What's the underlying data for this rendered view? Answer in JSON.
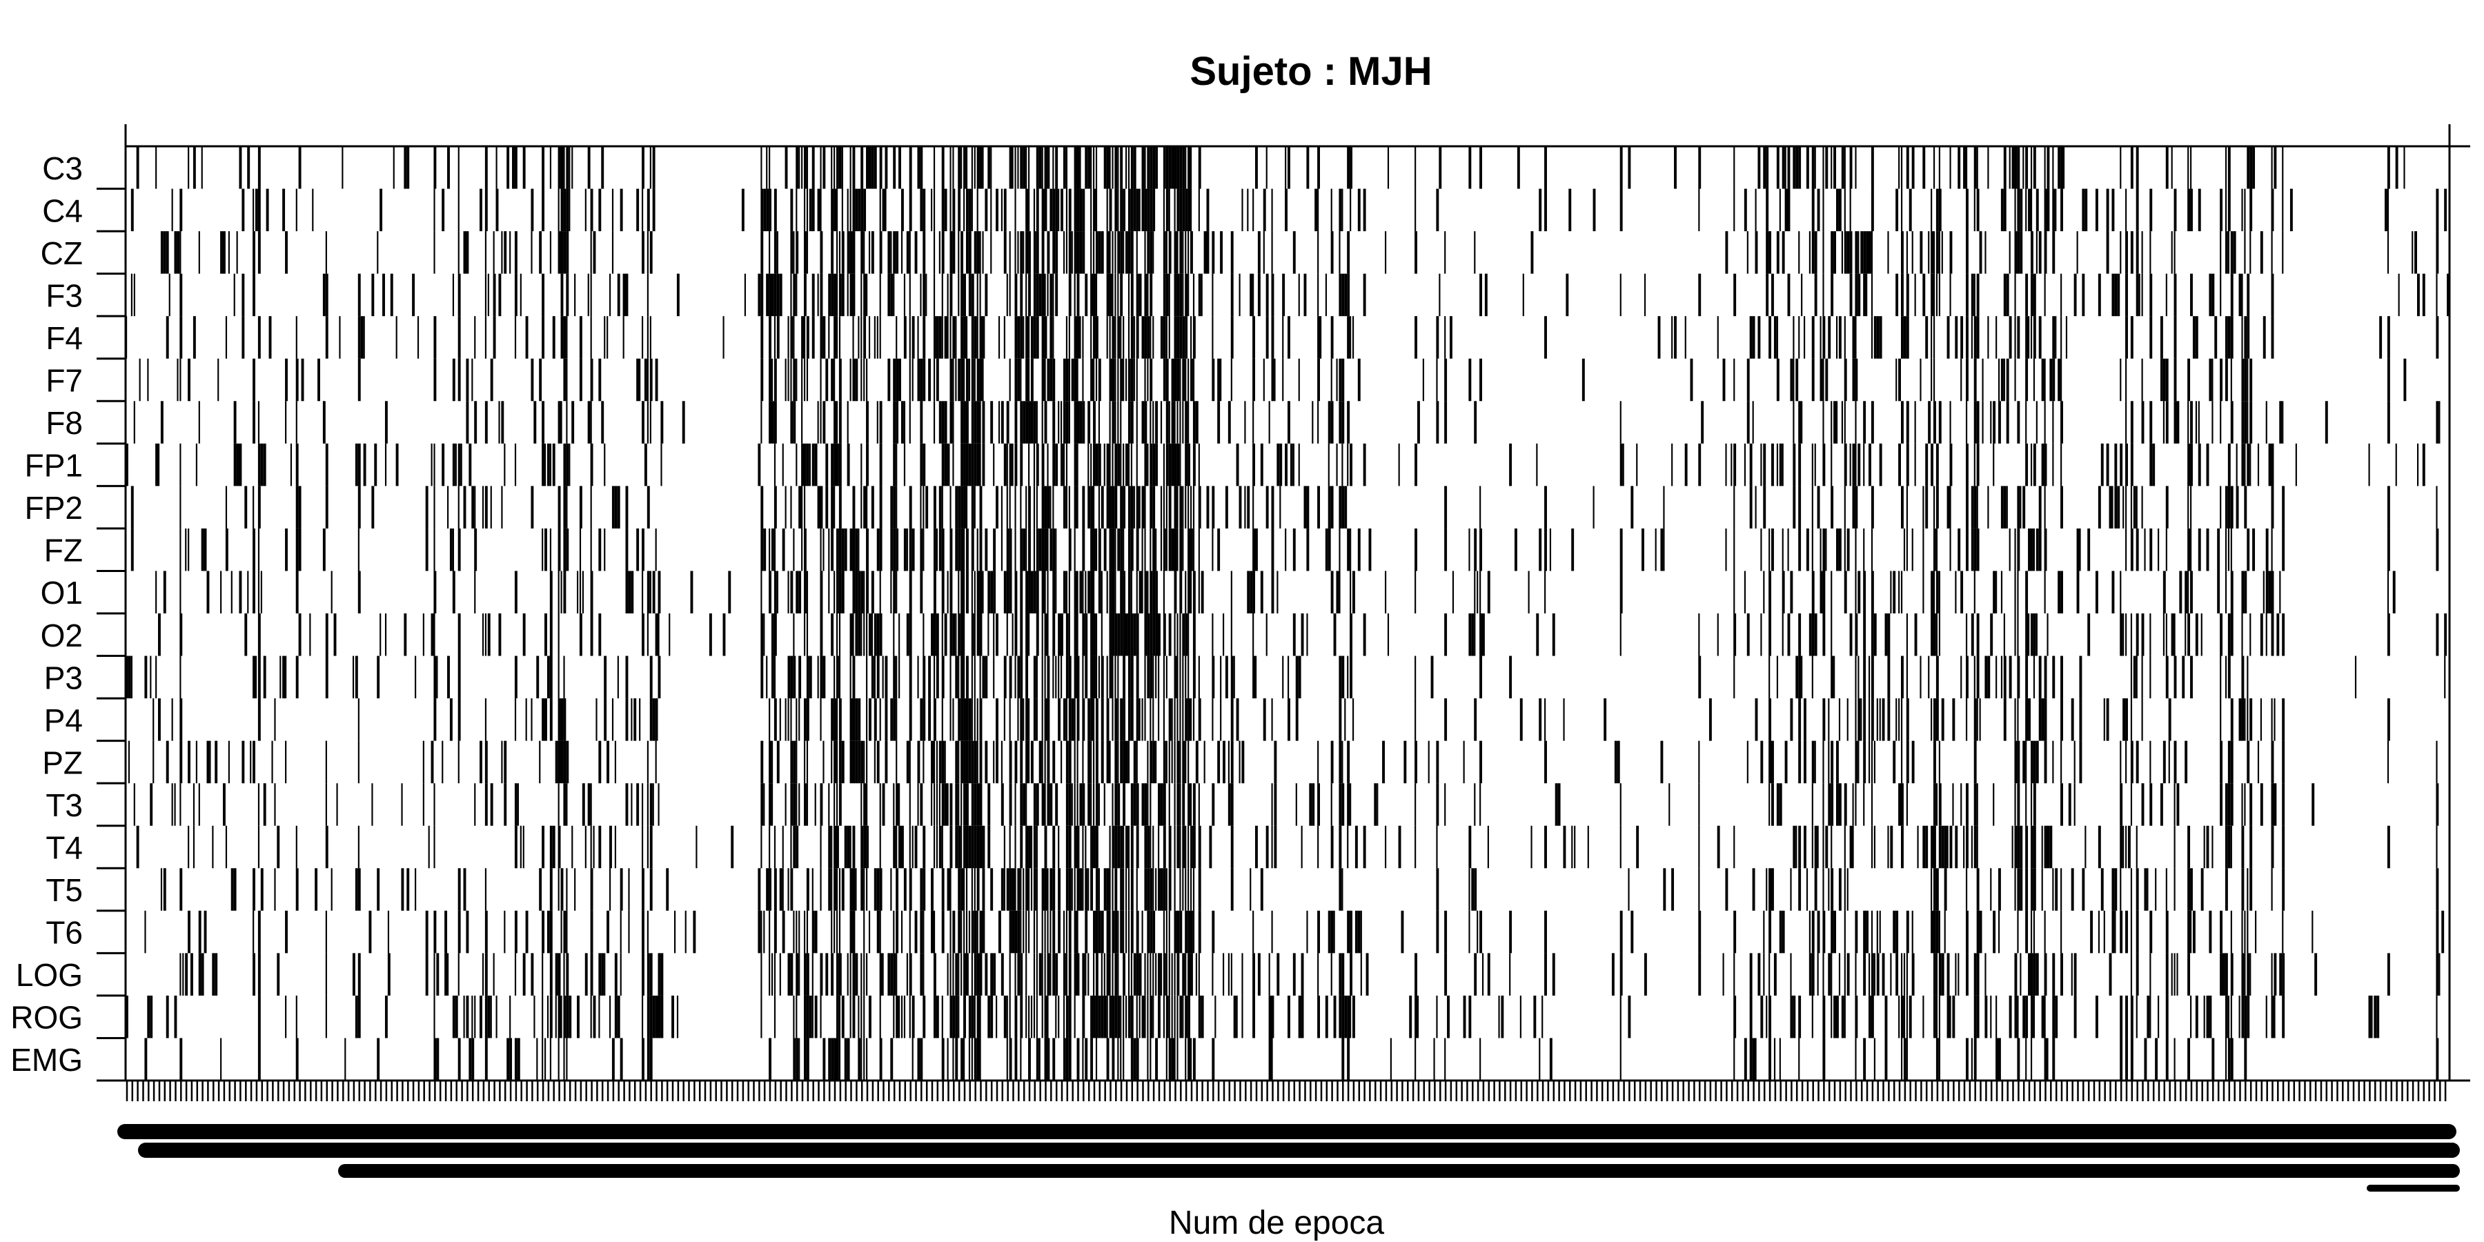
{
  "chart_data": {
    "type": "heatmap",
    "title": "Sujeto : MJH",
    "xlabel": "Num de epoca",
    "ylabel": "",
    "rows": [
      "C3",
      "C4",
      "CZ",
      "F3",
      "F4",
      "F7",
      "F8",
      "FP1",
      "FP2",
      "FZ",
      "O1",
      "O2",
      "P3",
      "P4",
      "PZ",
      "T3",
      "T4",
      "T5",
      "T6",
      "LOG",
      "ROG",
      "EMG"
    ],
    "x_range": [
      1,
      860
    ],
    "cell_values": [
      "0 (white)",
      "1 (black)"
    ],
    "colors": {
      "present": "#000000",
      "absent": "#ffffff",
      "axis": "#000000"
    },
    "activity_profile": {
      "description_note_excluded": true,
      "epoch_bands": [
        {
          "range": [
            1,
            60
          ],
          "density": 0.25
        },
        {
          "range": [
            60,
            120
          ],
          "density": 0.12
        },
        {
          "range": [
            120,
            200
          ],
          "density": 0.35
        },
        {
          "range": [
            200,
            235
          ],
          "density": 0.05
        },
        {
          "range": [
            235,
            300
          ],
          "density": 0.55
        },
        {
          "range": [
            300,
            395
          ],
          "density": 0.85
        },
        {
          "range": [
            395,
            460
          ],
          "density": 0.3
        },
        {
          "range": [
            460,
            600
          ],
          "density": 0.08
        },
        {
          "range": [
            600,
            715
          ],
          "density": 0.45
        },
        {
          "range": [
            715,
            800
          ],
          "density": 0.25
        },
        {
          "range": [
            800,
            830
          ],
          "density": 0.03
        },
        {
          "range": [
            830,
            860
          ],
          "density": 0.1
        }
      ],
      "row_density_factor": {
        "LOG": 1.5,
        "ROG": 1.4,
        "EMG": 0.55
      }
    },
    "grid": false,
    "legend": "none"
  }
}
